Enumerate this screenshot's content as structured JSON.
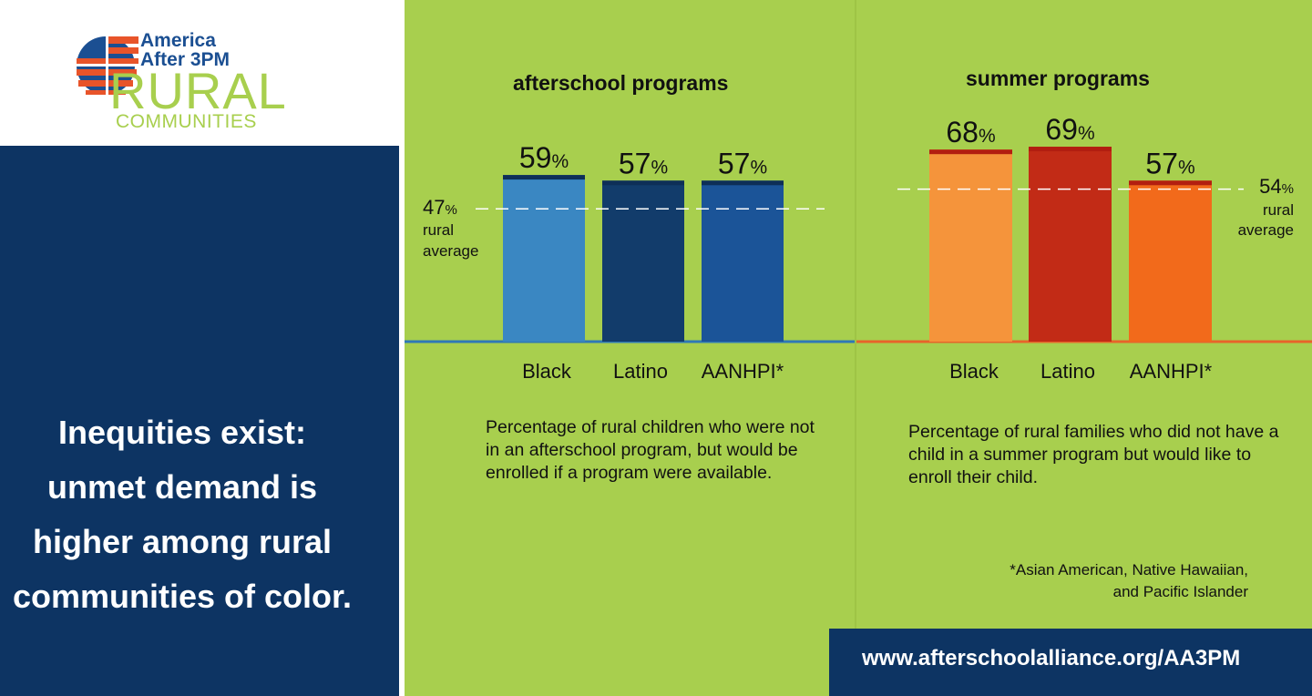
{
  "logo": {
    "line1": "America",
    "line2": "After 3PM",
    "line3": "RURAL",
    "line4": "COMMUNITIES"
  },
  "headline": "Inequities exist: unmet demand is higher among rural communities of color.",
  "colors": {
    "background_green": "#a8cf4e",
    "navy": "#0d3463",
    "afterschool_bars": [
      "#3a87c2",
      "#123c6b",
      "#1b5498"
    ],
    "summer_bars": [
      "#f5943b",
      "#c22b16",
      "#f26a1b"
    ]
  },
  "chart_data": [
    {
      "type": "bar",
      "title": "afterschool programs",
      "categories": [
        "Black",
        "Latino",
        "AANHPI*"
      ],
      "values": [
        59,
        57,
        57
      ],
      "value_labels": [
        {
          "number": "59",
          "unit": "%"
        },
        {
          "number": "57",
          "unit": "%"
        },
        {
          "number": "57",
          "unit": "%"
        }
      ],
      "reference_line": {
        "value": 47,
        "number": "47",
        "unit": "%",
        "label_line1": "rural",
        "label_line2": "average"
      },
      "caption": "Percentage of rural children who were not in an afterschool program, but would be enrolled if a program were available.",
      "legend": "none",
      "grid": false
    },
    {
      "type": "bar",
      "title": "summer programs",
      "categories": [
        "Black",
        "Latino",
        "AANHPI*"
      ],
      "values": [
        68,
        69,
        57
      ],
      "value_labels": [
        {
          "number": "68",
          "unit": "%"
        },
        {
          "number": "69",
          "unit": "%"
        },
        {
          "number": "57",
          "unit": "%"
        }
      ],
      "reference_line": {
        "value": 54,
        "number": "54",
        "unit": "%",
        "label_line1": "rural",
        "label_line2": "average"
      },
      "caption": "Percentage of rural families who did not have a child in a summer program but would like to enroll their child.",
      "legend": "none",
      "grid": false
    }
  ],
  "footnote": {
    "line1": "*Asian American, Native Hawaiian,",
    "line2": "and Pacific Islander"
  },
  "url": "www.afterschoolalliance.org/AA3PM"
}
